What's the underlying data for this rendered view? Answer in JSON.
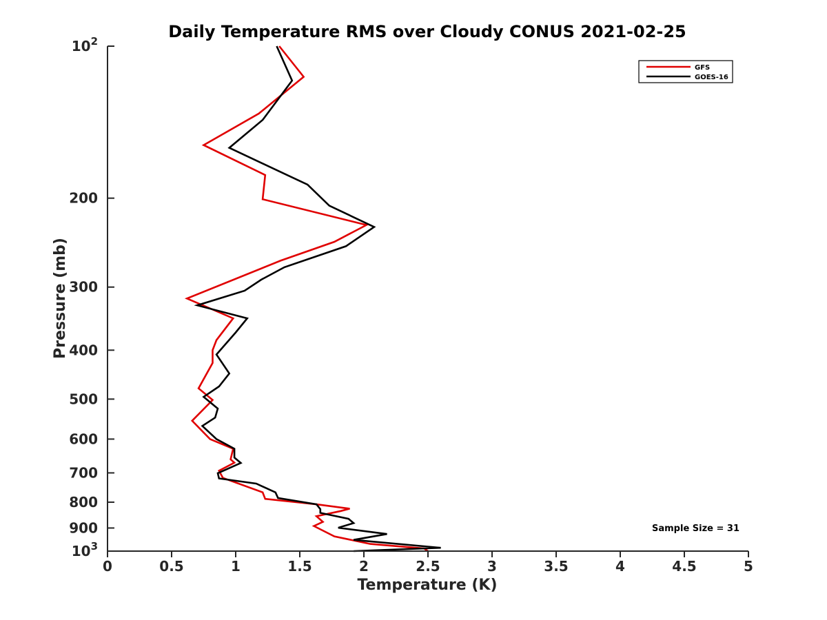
{
  "chart_data": {
    "type": "line",
    "title": "Daily Temperature RMS over Cloudy CONUS 2021-02-25",
    "xlabel": "Temperature (K)",
    "ylabel": "Pressure (mb)",
    "xlim": [
      0,
      5
    ],
    "ylim": [
      100,
      1000
    ],
    "y_scale": "log",
    "y_reversed": true,
    "grid": false,
    "legend_position": "top-right",
    "x_ticks": [
      {
        "value": 0,
        "label": "0"
      },
      {
        "value": 0.5,
        "label": "0.5"
      },
      {
        "value": 1,
        "label": "1"
      },
      {
        "value": 1.5,
        "label": "1.5"
      },
      {
        "value": 2,
        "label": "2"
      },
      {
        "value": 2.5,
        "label": "2.5"
      },
      {
        "value": 3,
        "label": "3"
      },
      {
        "value": 3.5,
        "label": "3.5"
      },
      {
        "value": 4,
        "label": "4"
      },
      {
        "value": 4.5,
        "label": "4.5"
      },
      {
        "value": 5,
        "label": "5"
      }
    ],
    "y_ticks": [
      {
        "value": 100,
        "base": "10",
        "exp": "2"
      },
      {
        "value": 200,
        "label": "200"
      },
      {
        "value": 300,
        "label": "300"
      },
      {
        "value": 400,
        "label": "400"
      },
      {
        "value": 500,
        "label": "500"
      },
      {
        "value": 600,
        "label": "600"
      },
      {
        "value": 700,
        "label": "700"
      },
      {
        "value": 800,
        "label": "800"
      },
      {
        "value": 900,
        "label": "900"
      },
      {
        "value": 1000,
        "base": "10",
        "exp": "3"
      }
    ],
    "series": [
      {
        "name": "GFS",
        "color": "#e00000",
        "points": [
          [
            1.34,
            100
          ],
          [
            1.53,
            115
          ],
          [
            1.18,
            136
          ],
          [
            0.75,
            157
          ],
          [
            1.23,
            180
          ],
          [
            1.21,
            201
          ],
          [
            2.02,
            226
          ],
          [
            1.77,
            244
          ],
          [
            1.35,
            266
          ],
          [
            0.62,
            316
          ],
          [
            0.98,
            346
          ],
          [
            0.85,
            382
          ],
          [
            0.82,
            400
          ],
          [
            0.82,
            424
          ],
          [
            0.71,
            476
          ],
          [
            0.82,
            502
          ],
          [
            0.66,
            552
          ],
          [
            0.8,
            600
          ],
          [
            0.98,
            627
          ],
          [
            0.96,
            658
          ],
          [
            0.99,
            668
          ],
          [
            0.87,
            693
          ],
          [
            0.9,
            716
          ],
          [
            1.21,
            765
          ],
          [
            1.23,
            788
          ],
          [
            1.63,
            808
          ],
          [
            1.89,
            824
          ],
          [
            1.82,
            833
          ],
          [
            1.63,
            853
          ],
          [
            1.68,
            875
          ],
          [
            1.61,
            892
          ],
          [
            1.77,
            935
          ],
          [
            2.05,
            968
          ],
          [
            2.47,
            988
          ],
          [
            2.5,
            1000
          ]
        ]
      },
      {
        "name": "GOES-16",
        "color": "#000000",
        "points": [
          [
            1.32,
            100
          ],
          [
            1.44,
            117
          ],
          [
            1.21,
            140
          ],
          [
            0.95,
            159
          ],
          [
            1.56,
            188
          ],
          [
            1.73,
            207
          ],
          [
            2.08,
            228
          ],
          [
            1.86,
            249
          ],
          [
            1.38,
            274
          ],
          [
            1.2,
            290
          ],
          [
            1.07,
            305
          ],
          [
            0.7,
            326
          ],
          [
            1.09,
            346
          ],
          [
            1.0,
            369
          ],
          [
            0.85,
            408
          ],
          [
            0.95,
            445
          ],
          [
            0.87,
            472
          ],
          [
            0.75,
            495
          ],
          [
            0.86,
            522
          ],
          [
            0.84,
            544
          ],
          [
            0.74,
            565
          ],
          [
            0.85,
            600
          ],
          [
            0.99,
            627
          ],
          [
            0.99,
            653
          ],
          [
            1.04,
            669
          ],
          [
            0.86,
            701
          ],
          [
            0.87,
            718
          ],
          [
            1.16,
            735
          ],
          [
            1.31,
            765
          ],
          [
            1.33,
            785
          ],
          [
            1.63,
            808
          ],
          [
            1.66,
            826
          ],
          [
            1.66,
            840
          ],
          [
            1.88,
            863
          ],
          [
            1.92,
            880
          ],
          [
            1.8,
            899
          ],
          [
            2.18,
            925
          ],
          [
            1.92,
            950
          ],
          [
            2.6,
            985
          ],
          [
            1.92,
            1000
          ]
        ]
      }
    ],
    "annotation": "Sample Size = 31"
  }
}
